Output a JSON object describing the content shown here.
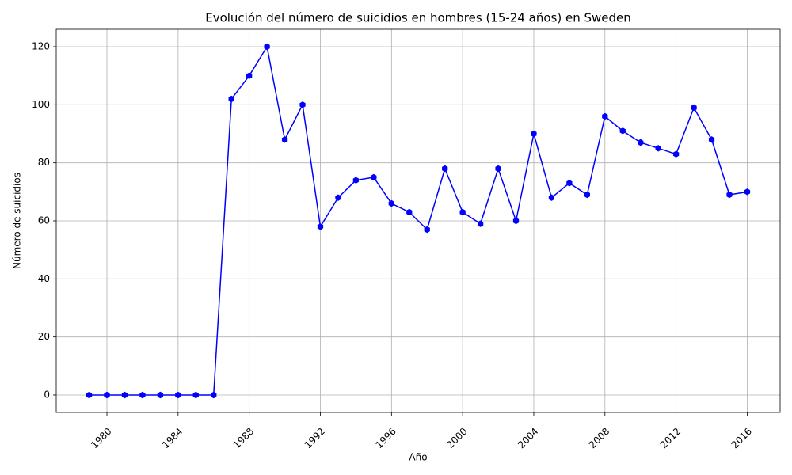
{
  "chart_data": {
    "type": "line",
    "title": "Evolución del número de suicidios en hombres (15-24 años) en Sweden",
    "x_label": "Año",
    "y_label": "Número de suicidios",
    "x": [
      1979,
      1980,
      1981,
      1982,
      1983,
      1984,
      1985,
      1986,
      1987,
      1988,
      1989,
      1990,
      1991,
      1992,
      1993,
      1994,
      1995,
      1996,
      1997,
      1998,
      1999,
      2000,
      2001,
      2002,
      2003,
      2004,
      2005,
      2006,
      2007,
      2008,
      2009,
      2010,
      2011,
      2012,
      2013,
      2014,
      2015,
      2016
    ],
    "values": [
      0,
      0,
      0,
      0,
      0,
      0,
      0,
      0,
      102,
      110,
      120,
      88,
      100,
      58,
      68,
      74,
      75,
      66,
      63,
      57,
      78,
      63,
      59,
      78,
      60,
      90,
      68,
      73,
      69,
      96,
      91,
      87,
      85,
      83,
      99,
      88,
      69,
      70
    ],
    "color": "#0000ff",
    "xlim": [
      1977.15,
      2017.85
    ],
    "xticks": [
      1980,
      1984,
      1988,
      1992,
      1996,
      2000,
      2004,
      2008,
      2012,
      2016
    ],
    "ylim": [
      -6,
      126
    ],
    "yticks": [
      0,
      20,
      40,
      60,
      80,
      100,
      120
    ],
    "grid": true
  }
}
